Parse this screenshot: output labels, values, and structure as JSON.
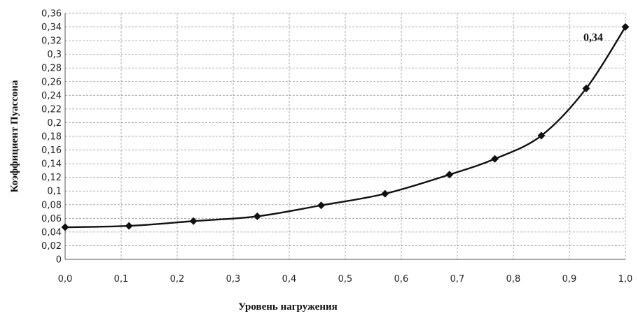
{
  "chart_data": {
    "type": "line",
    "xlabel": "Уровень нагружения",
    "ylabel": "Коэффициент Пуассона",
    "xlim": [
      0,
      1.0
    ],
    "ylim": [
      0,
      0.36
    ],
    "x_ticks": [
      "0,0",
      "0,1",
      "0,2",
      "0,3",
      "0,4",
      "0,5",
      "0,6",
      "0,7",
      "0,8",
      "0,9",
      "1,0"
    ],
    "y_ticks": [
      "0",
      "0,02",
      "0,04",
      "0,06",
      "0,08",
      "0,1",
      "0,12",
      "0,14",
      "0,16",
      "0,18",
      "0,2",
      "0,22",
      "0,24",
      "0,26",
      "0,28",
      "0,3",
      "0,32",
      "0,34",
      "0,36"
    ],
    "grid": true,
    "series": [
      {
        "x": [
          0,
          0.114,
          0.229,
          0.343,
          0.457,
          0.571,
          0.686,
          0.767,
          0.85,
          0.93,
          1.0
        ],
        "y": [
          0.047,
          0.049,
          0.056,
          0.063,
          0.079,
          0.096,
          0.124,
          0.147,
          0.181,
          0.25,
          0.34
        ]
      }
    ],
    "annotations": [
      {
        "text": "0,34",
        "x": 1.0,
        "y": 0.34
      }
    ],
    "color": "#111111"
  }
}
